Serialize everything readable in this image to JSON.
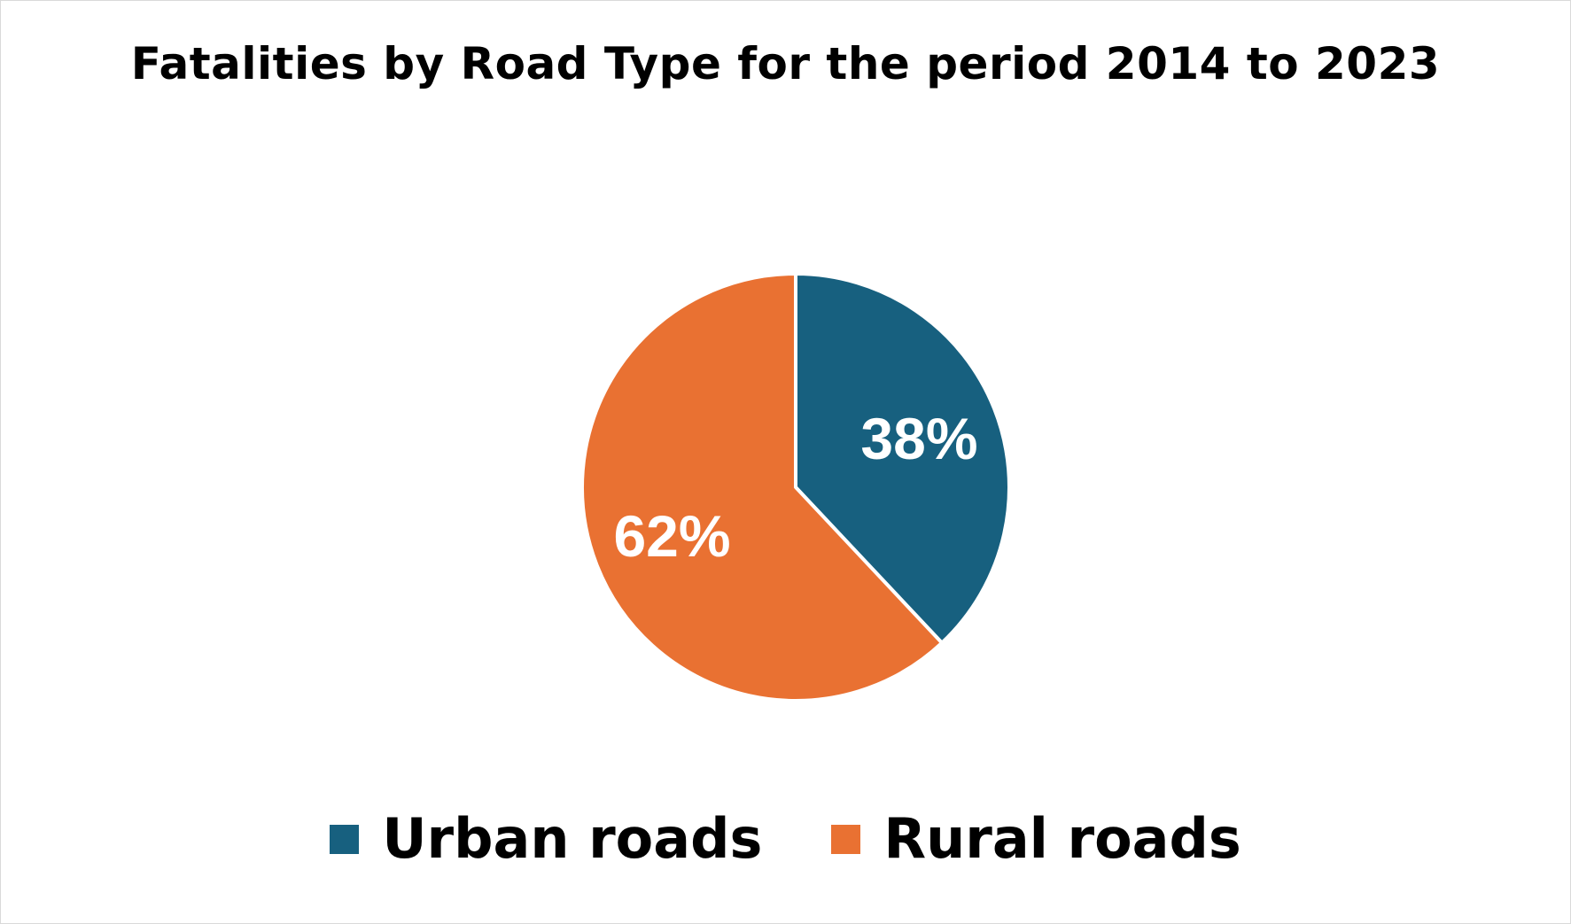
{
  "chart_data": {
    "type": "pie",
    "title": "Fatalities by Road Type for the period 2014 to 2023",
    "categories": [
      "Urban roads",
      "Rural roads"
    ],
    "values": [
      38,
      62
    ],
    "labels": [
      "38%",
      "62%"
    ],
    "colors": [
      "#17607f",
      "#e97132"
    ],
    "legend_position": "bottom",
    "start": "12 o'clock",
    "direction": "clockwise"
  }
}
